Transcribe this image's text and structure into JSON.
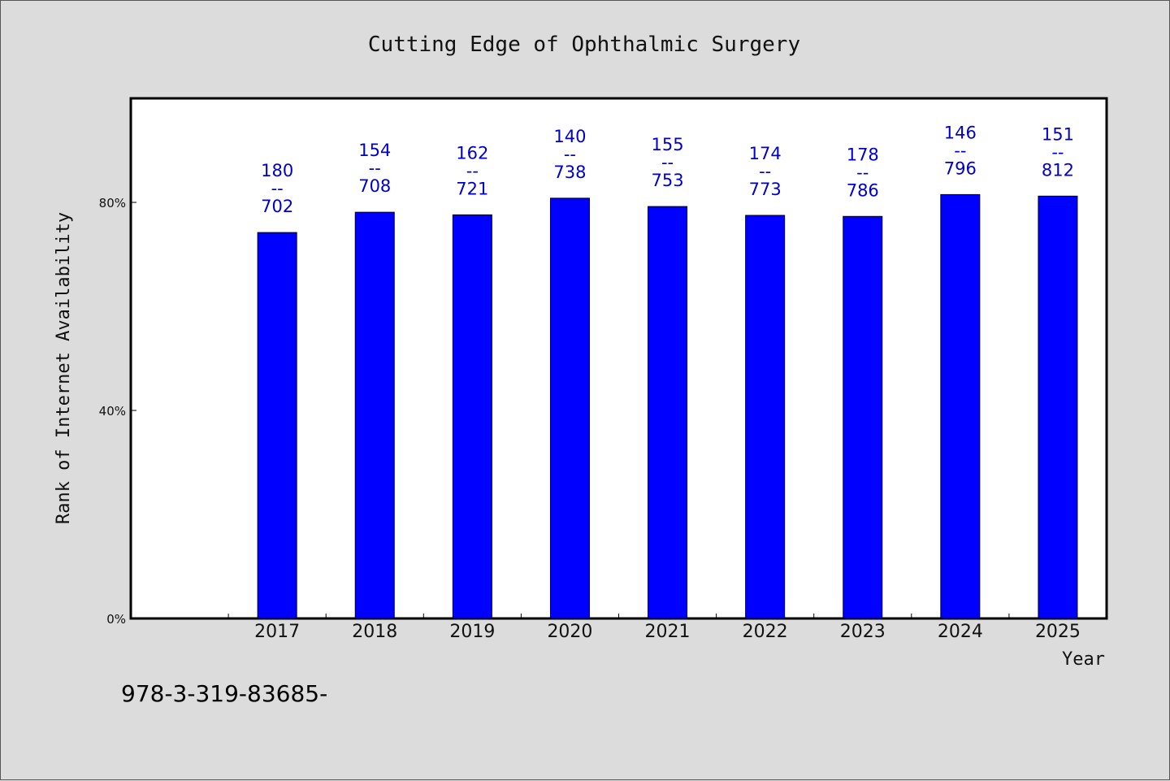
{
  "colors": {
    "background": "#dcdcdc",
    "plot_background": "#ffffff",
    "bar_fill": "#0000ff",
    "label_color": "#0000cc"
  },
  "footer_code": "978-3-319-83685-",
  "chart_data": {
    "type": "bar",
    "title": "Cutting Edge of Ophthalmic Surgery",
    "xlabel": "Year",
    "ylabel": "Rank of Internet Availability",
    "categories": [
      "2017",
      "2018",
      "2019",
      "2020",
      "2021",
      "2022",
      "2023",
      "2024",
      "2025"
    ],
    "values": [
      74.2,
      78.1,
      77.6,
      80.8,
      79.2,
      77.5,
      77.3,
      81.5,
      81.2
    ],
    "data_labels": [
      [
        "180",
        "--",
        "702"
      ],
      [
        "154",
        "--",
        "708"
      ],
      [
        "162",
        "--",
        "721"
      ],
      [
        "140",
        "--",
        "738"
      ],
      [
        "155",
        "--",
        "753"
      ],
      [
        "174",
        "--",
        "773"
      ],
      [
        "178",
        "--",
        "786"
      ],
      [
        "146",
        "--",
        "796"
      ],
      [
        "151",
        "--",
        "812"
      ]
    ],
    "ylim": [
      0,
      100
    ],
    "yticks": [
      0,
      40,
      80
    ],
    "ytick_labels": [
      "0%",
      "40%",
      "80%"
    ],
    "x_slots": 10,
    "grid": false,
    "legend": "none"
  }
}
